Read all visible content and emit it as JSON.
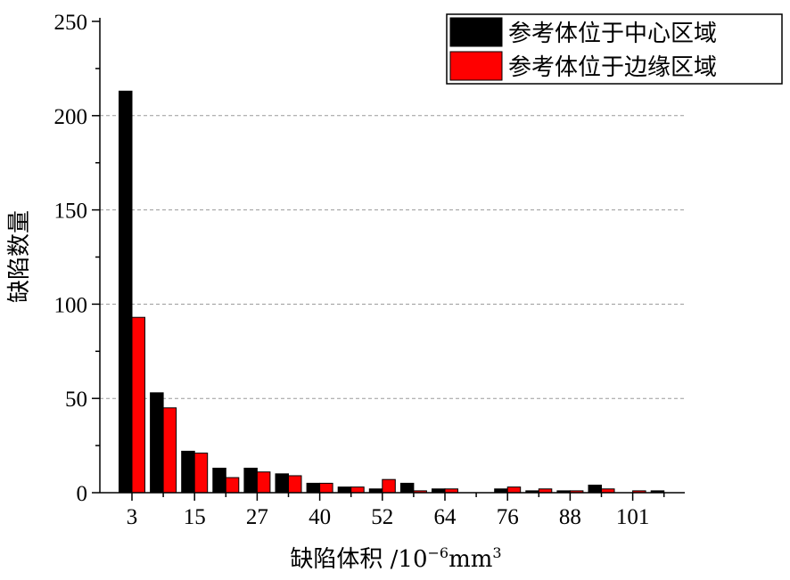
{
  "chart_data": {
    "type": "bar",
    "x_tick_labels": [
      "3",
      "15",
      "27",
      "40",
      "52",
      "64",
      "76",
      "88",
      "101"
    ],
    "y_tick_labels": [
      "0",
      "50",
      "100",
      "150",
      "200",
      "250"
    ],
    "ylim": [
      0,
      250
    ],
    "y_major_step": 50,
    "grid": "dashed horizontal at major y ticks",
    "legend_position": "top-right",
    "xlabel": "缺陷体积 /10",
    "xlabel_exp": "−6",
    "xlabel_unit": "mm",
    "xlabel_unit_exp": "3",
    "ylabel": "缺陷数量",
    "num_bins": 18,
    "series": [
      {
        "name": "参考体位于中心区域",
        "color": "#000000",
        "values": [
          213,
          53,
          22,
          13,
          13,
          10,
          5,
          3,
          2,
          5,
          2,
          0,
          2,
          1,
          1,
          4,
          0,
          1
        ]
      },
      {
        "name": "参考体位于边缘区域",
        "color": "#ff0000",
        "values": [
          93,
          45,
          21,
          8,
          11,
          9,
          5,
          3,
          7,
          1,
          2,
          0,
          3,
          2,
          1,
          2,
          1,
          0
        ]
      }
    ]
  }
}
